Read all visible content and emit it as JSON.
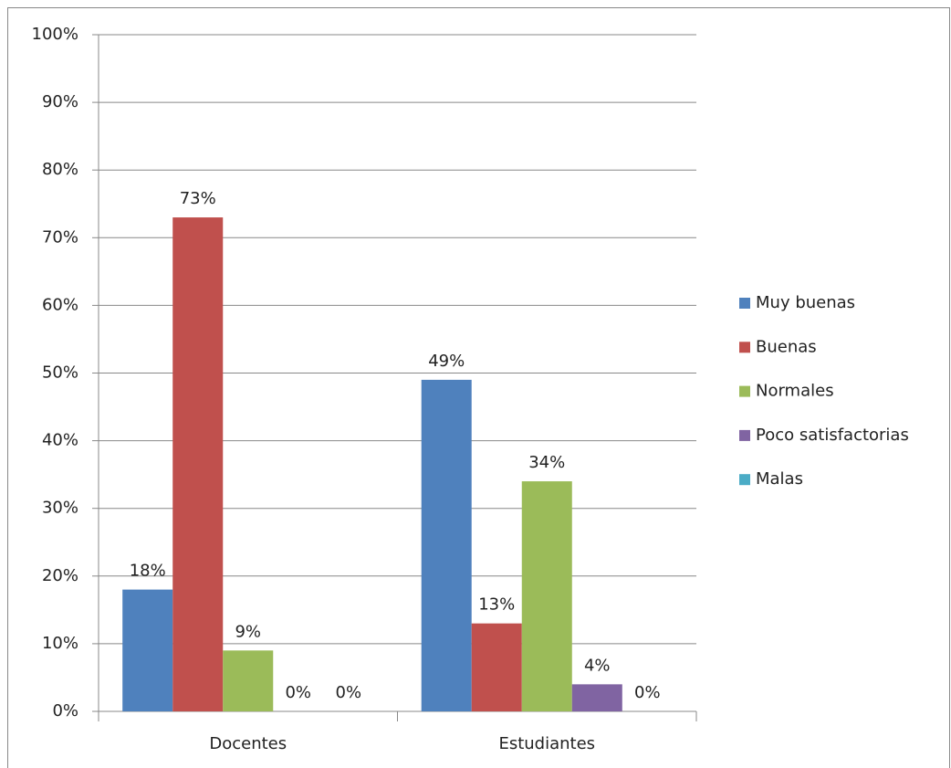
{
  "chart_data": {
    "type": "bar",
    "categories": [
      "Docentes",
      "Estudiantes"
    ],
    "series": [
      {
        "name": "Muy buenas",
        "color": "#4f81bd",
        "values": [
          18,
          49
        ],
        "value_labels": [
          "18%",
          "49%"
        ]
      },
      {
        "name": "Buenas",
        "color": "#c0504d",
        "values": [
          73,
          13
        ],
        "value_labels": [
          "73%",
          "13%"
        ]
      },
      {
        "name": "Normales",
        "color": "#9bbb59",
        "values": [
          9,
          34
        ],
        "value_labels": [
          "9%",
          "34%"
        ]
      },
      {
        "name": "Poco satisfactorias",
        "color": "#8064a2",
        "values": [
          0,
          4
        ],
        "value_labels": [
          "0%",
          "4%"
        ]
      },
      {
        "name": "Malas",
        "color": "#4bacc6",
        "values": [
          0,
          0
        ],
        "value_labels": [
          "0%",
          "0%"
        ]
      }
    ],
    "ylim": [
      0,
      100
    ],
    "yticks": [
      {
        "value": 0,
        "label": "0%"
      },
      {
        "value": 10,
        "label": "10%"
      },
      {
        "value": 20,
        "label": "20%"
      },
      {
        "value": 30,
        "label": "30%"
      },
      {
        "value": 40,
        "label": "40%"
      },
      {
        "value": 50,
        "label": "50%"
      },
      {
        "value": 60,
        "label": "60%"
      },
      {
        "value": 70,
        "label": "70%"
      },
      {
        "value": 80,
        "label": "80%"
      },
      {
        "value": 90,
        "label": "90%"
      },
      {
        "value": 100,
        "label": "100%"
      }
    ],
    "grid": true,
    "legend": "right"
  }
}
